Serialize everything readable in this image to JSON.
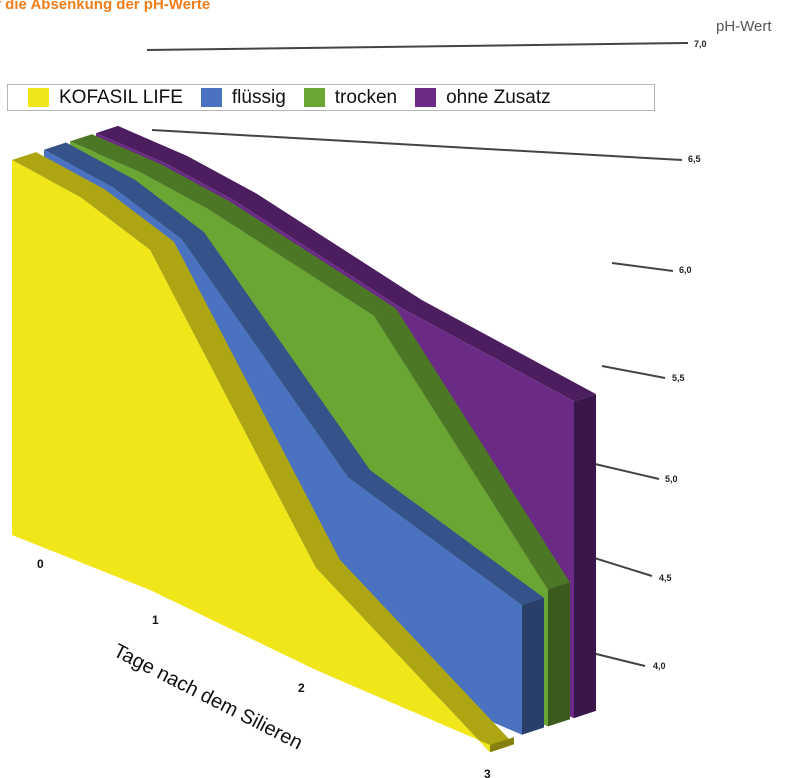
{
  "title": "f die Absenkung der pH-Werte",
  "chart_data": {
    "type": "area",
    "title": "f die Absenkung der pH-Werte",
    "ylabel": "pH-Wert",
    "xlabel": "Tage nach dem Silieren",
    "categories": [
      "0",
      "1",
      "2",
      "3"
    ],
    "x": [
      0,
      0.5,
      1,
      2,
      3
    ],
    "y_ticks": [
      "7,0",
      "6,5",
      "6,0",
      "5,5",
      "5,0",
      "4,5",
      "4,0"
    ],
    "ylim": [
      4.0,
      7.0
    ],
    "legend_position": "top",
    "series": [
      {
        "name": "ohne Zusatz",
        "color": "#6a2a86",
        "values": [
          6.5,
          6.5,
          6.45,
          6.3,
          6.2
        ]
      },
      {
        "name": "trocken",
        "color": "#6aa633",
        "values": [
          6.5,
          6.5,
          6.45,
          6.3,
          4.95
        ]
      },
      {
        "name": "flüssig",
        "color": "#4a72c0",
        "values": [
          6.5,
          6.45,
          6.3,
          5.25,
          4.9
        ]
      },
      {
        "name": "KOFASIL LIFE",
        "color": "#f0e619",
        "values": [
          6.5,
          6.45,
          6.3,
          4.7,
          3.95
        ]
      }
    ],
    "legend": [
      {
        "label": "KOFASIL LIFE",
        "color": "#f0e619"
      },
      {
        "label": "flüssig",
        "color": "#4a72c0"
      },
      {
        "label": "trocken",
        "color": "#6aa633"
      },
      {
        "label": "ohne Zusatz",
        "color": "#6a2a86"
      }
    ]
  }
}
